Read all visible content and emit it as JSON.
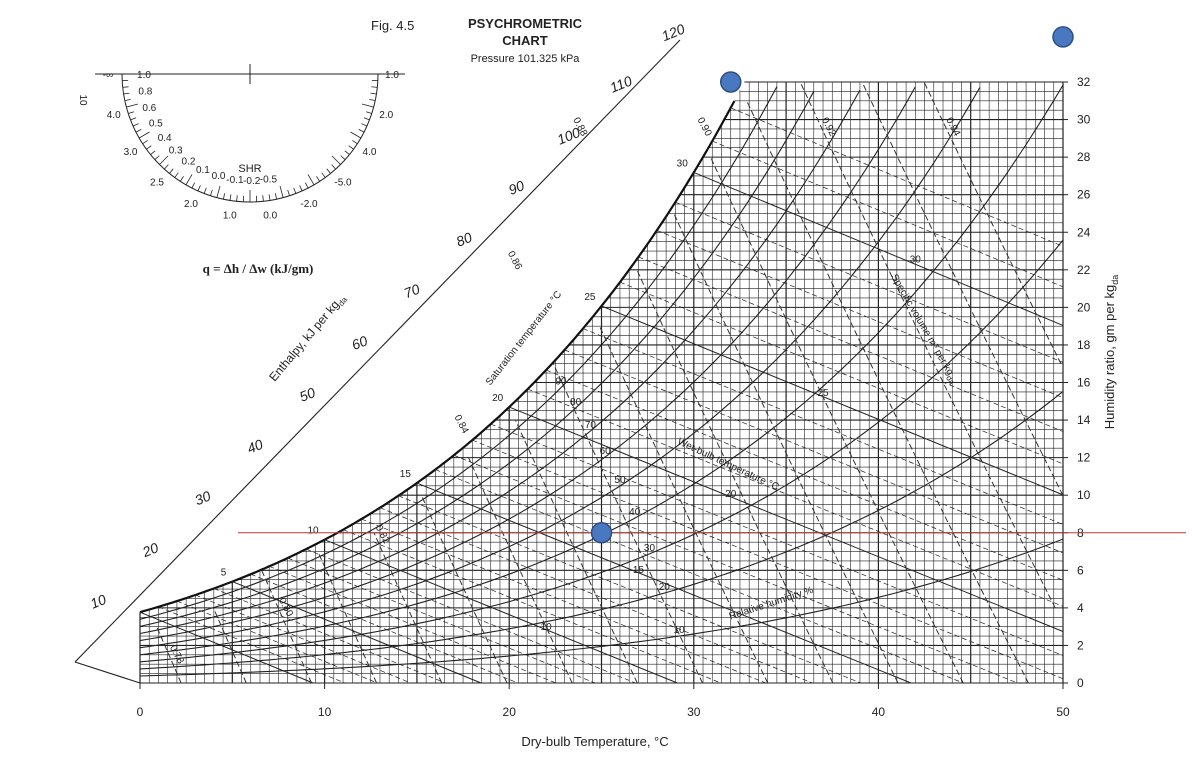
{
  "chart_data": {
    "type": "scatter",
    "fig_label": "Fig.  4.5",
    "title_line1": "PSYCHROMETRIC",
    "title_line2": "CHART",
    "subtitle": "Pressure 101.325 kPa",
    "xlabel": "Dry-bulb Temperature, °C",
    "ylabel": "Humidity ratio, gm per kg",
    "ylabel_sub": "da",
    "xlim": [
      0,
      50
    ],
    "ylim": [
      0,
      32
    ],
    "x_ticks": [
      "0",
      "10",
      "20",
      "30",
      "40",
      "50"
    ],
    "y_ticks": [
      "0",
      "2",
      "4",
      "6",
      "8",
      "10",
      "12",
      "14",
      "16",
      "18",
      "20",
      "22",
      "24",
      "26",
      "28",
      "30",
      "32"
    ],
    "enthalpy_axis_label": "Enthalpy, kJ per kg",
    "enthalpy_axis_sub": "da",
    "enthalpy_values": [
      "10",
      "20",
      "30",
      "40",
      "50",
      "60",
      "70",
      "80",
      "90",
      "100",
      "110",
      "120"
    ],
    "saturation_label": "Saturation temperature °C",
    "saturation_values": [
      "5",
      "10",
      "15",
      "20",
      "25",
      "30"
    ],
    "wet_bulb_label": "Wet-bulb temperature °C",
    "wet_bulb_values": [
      "10",
      "15",
      "20",
      "25",
      "30"
    ],
    "relative_humidity_label": "Relative humidity %",
    "relative_humidity_values": [
      "10",
      "20",
      "30",
      "40",
      "50",
      "60",
      "70",
      "80",
      "90"
    ],
    "specific_volume_label": "Specific volume m³ per kg",
    "specific_volume_sub": "da",
    "specific_volume_values": [
      "0.78",
      "0.80",
      "0.82",
      "0.84",
      "0.86",
      "0.88",
      "0.90",
      "0.92",
      "0.94"
    ],
    "shr_protractor": {
      "label": "SHR",
      "formula": "q = Δh / Δw  (kJ/gm)",
      "left_values": [
        "1.0",
        "0.8",
        "0.6",
        "0.5",
        "0.4",
        "0.3",
        "0.2",
        "0.1",
        "0.0",
        "-0.1",
        "-0.2",
        "-0.5"
      ],
      "right_values": [
        "1.0",
        "2.0",
        "4.0",
        "-5.0",
        "-2.0",
        "0.0",
        "1.0",
        "2.0",
        "2.5",
        "3.0",
        "4.0",
        "-∞"
      ],
      "side_value": "10"
    },
    "marked_points": [
      {
        "x": 25,
        "y": 8.0
      },
      {
        "x": 32,
        "y": 32.0
      },
      {
        "x": 50,
        "y": 34.4
      }
    ],
    "reference_line": {
      "y": 8.0
    },
    "colors": {
      "point": "#4a78c0",
      "point_edge": "#2c4f86",
      "reference_line": "#c0392b",
      "grid": "#222222"
    }
  }
}
